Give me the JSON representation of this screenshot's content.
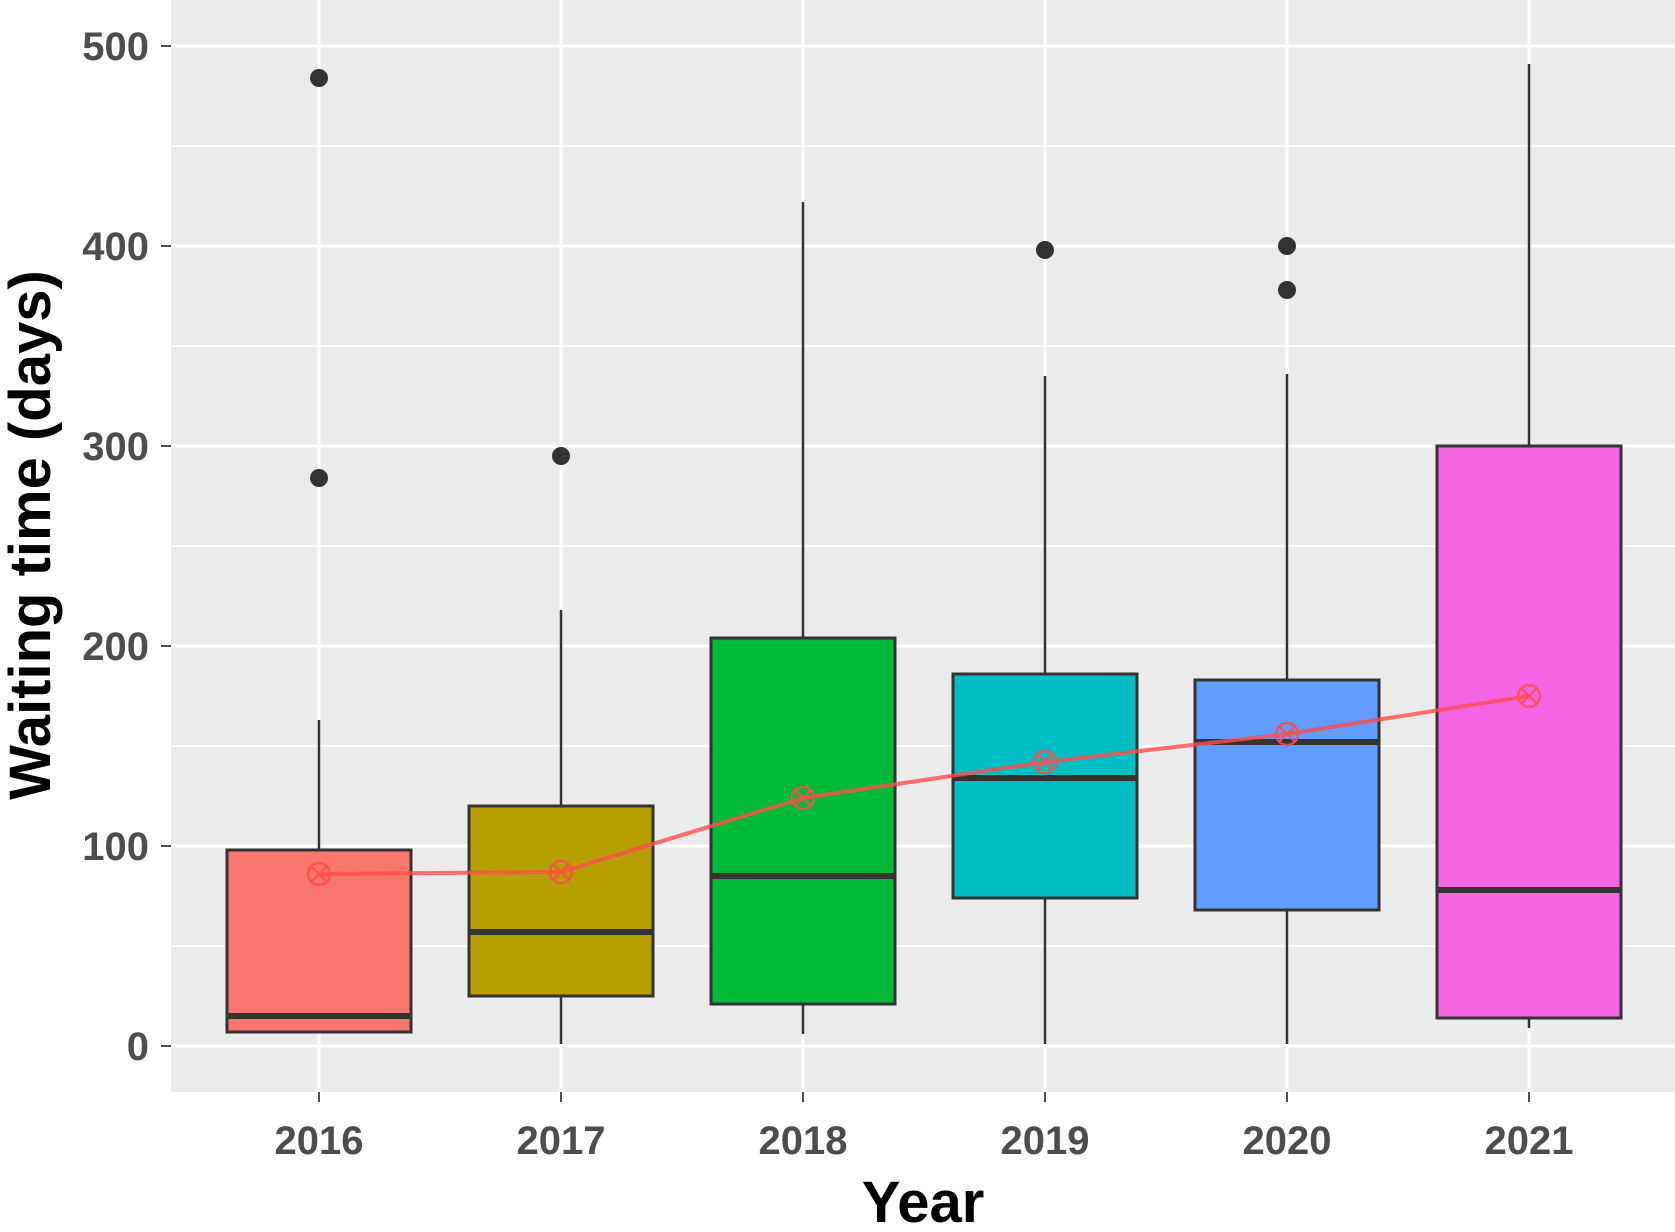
{
  "chart_data": {
    "type": "boxplot",
    "xlabel": "Year",
    "ylabel": "Waiting time (days)",
    "categories": [
      "2016",
      "2017",
      "2018",
      "2019",
      "2020",
      "2021"
    ],
    "ylim": [
      -23,
      523
    ],
    "yticks": [
      0,
      100,
      200,
      300,
      400,
      500
    ],
    "grid": true,
    "legend": "none",
    "colors": {
      "panel_bg": "#ebebeb",
      "grid": "#ffffff",
      "box_outline": "#333333",
      "mean_line": "#ff4c4c",
      "fills": [
        "#f8766d",
        "#b79f00",
        "#00ba38",
        "#00bfc4",
        "#619cff",
        "#f564e3"
      ]
    },
    "boxes": [
      {
        "year": "2016",
        "whisker_low": 7,
        "q1": 7,
        "median": 15,
        "q3": 98,
        "whisker_high": 163,
        "outliers": [
          484,
          284
        ]
      },
      {
        "year": "2017",
        "whisker_low": 1,
        "q1": 25,
        "median": 57,
        "q3": 120,
        "whisker_high": 218,
        "outliers": [
          295
        ]
      },
      {
        "year": "2018",
        "whisker_low": 6,
        "q1": 21,
        "median": 85,
        "q3": 204,
        "whisker_high": 422,
        "outliers": []
      },
      {
        "year": "2019",
        "whisker_low": 1,
        "q1": 74,
        "median": 134,
        "q3": 186,
        "whisker_high": 335,
        "outliers": [
          398
        ]
      },
      {
        "year": "2020",
        "whisker_low": 1,
        "q1": 68,
        "median": 152,
        "q3": 183,
        "whisker_high": 336,
        "outliers": [
          400,
          378
        ]
      },
      {
        "year": "2021",
        "whisker_low": 9,
        "q1": 14,
        "median": 78,
        "q3": 300,
        "whisker_high": 491,
        "outliers": []
      }
    ],
    "mean_series": {
      "x": [
        "2016",
        "2017",
        "2018",
        "2019",
        "2020",
        "2021"
      ],
      "y": [
        86,
        87,
        124,
        142,
        156,
        175
      ]
    }
  }
}
